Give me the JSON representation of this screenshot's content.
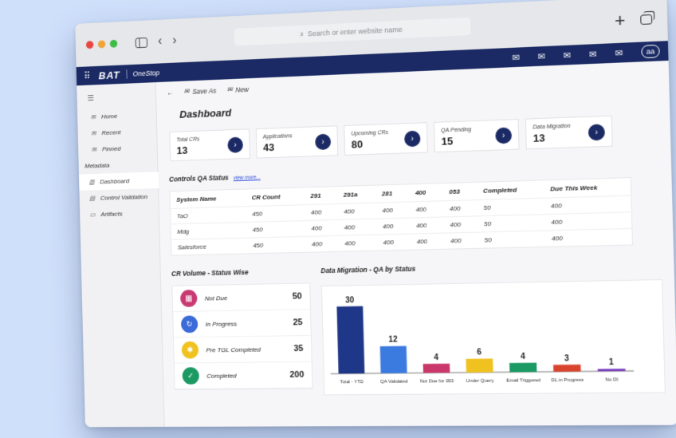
{
  "browser": {
    "search_placeholder": "Search or enter website name",
    "new_tab_label": "+",
    "nav_back": "‹",
    "nav_forward": "›",
    "traffic_colors": [
      "#e8473f",
      "#f2a33a",
      "#3ebd45"
    ]
  },
  "appbar": {
    "brand": "BAT",
    "app_name": "OneStop",
    "avatar_initials": "aa",
    "menu_glyph": "⠿",
    "mail_glyph": "✉",
    "color": "#1b2a64"
  },
  "sidebar": {
    "menu_glyph": "☰",
    "items": [
      {
        "label": "Home",
        "icon": "mail-icon"
      },
      {
        "label": "Recent",
        "icon": "mail-icon"
      },
      {
        "label": "Pinned",
        "icon": "mail-icon"
      }
    ],
    "section_label": "Metadata",
    "sub_items": [
      {
        "label": "Dashboard",
        "icon": "bar-chart-icon"
      },
      {
        "label": "Control Validation",
        "icon": "list-icon"
      },
      {
        "label": "Artifacts",
        "icon": "folder-icon"
      }
    ]
  },
  "toolbar": {
    "back": "←",
    "save_as": "Save As",
    "new": "New"
  },
  "page_title": "Dashboard",
  "cards": [
    {
      "title": "Total CRs",
      "value": "13"
    },
    {
      "title": "Applications",
      "value": "43"
    },
    {
      "title": "Upcoming CRs",
      "value": "80"
    },
    {
      "title": "QA Pending",
      "value": "15"
    },
    {
      "title": "Data Migration",
      "value": "13"
    }
  ],
  "controls": {
    "title": "Controls QA Status",
    "view_more": "view more...",
    "columns": [
      "System Name",
      "CR Count",
      "291",
      "291a",
      "281",
      "400",
      "053",
      "Completed",
      "Due This Week"
    ],
    "rows": [
      [
        "TaO",
        "450",
        "400",
        "400",
        "400",
        "400",
        "400",
        "50",
        "400"
      ],
      [
        "Mdg",
        "450",
        "400",
        "400",
        "400",
        "400",
        "400",
        "50",
        "400"
      ],
      [
        "Salesforce",
        "450",
        "400",
        "400",
        "400",
        "400",
        "400",
        "50",
        "400"
      ]
    ]
  },
  "cr_volume": {
    "title": "CR Volume - Status Wise",
    "items": [
      {
        "label": "Not Due",
        "count": "50",
        "color": "#c93a73"
      },
      {
        "label": "In Progress",
        "count": "25",
        "color": "#3b6ad9"
      },
      {
        "label": "Pre TGL Completed",
        "count": "35",
        "color": "#f0c21f"
      },
      {
        "label": "Completed",
        "count": "200",
        "color": "#1c9a63"
      }
    ]
  },
  "chart_data": {
    "type": "bar",
    "title": "Data Migration - QA by Status",
    "categories": [
      "Total - YTD",
      "QA Validated",
      "Not Due for 053",
      "Under Query",
      "Email Triggered",
      "DL in Progress",
      "No DI"
    ],
    "values": [
      30,
      12,
      4,
      6,
      4,
      3,
      1
    ],
    "colors": [
      "#1f3788",
      "#3b7be0",
      "#c9376b",
      "#f0c21f",
      "#1c9a63",
      "#d9442f",
      "#7a3fc0"
    ],
    "ylim": [
      0,
      32
    ]
  }
}
